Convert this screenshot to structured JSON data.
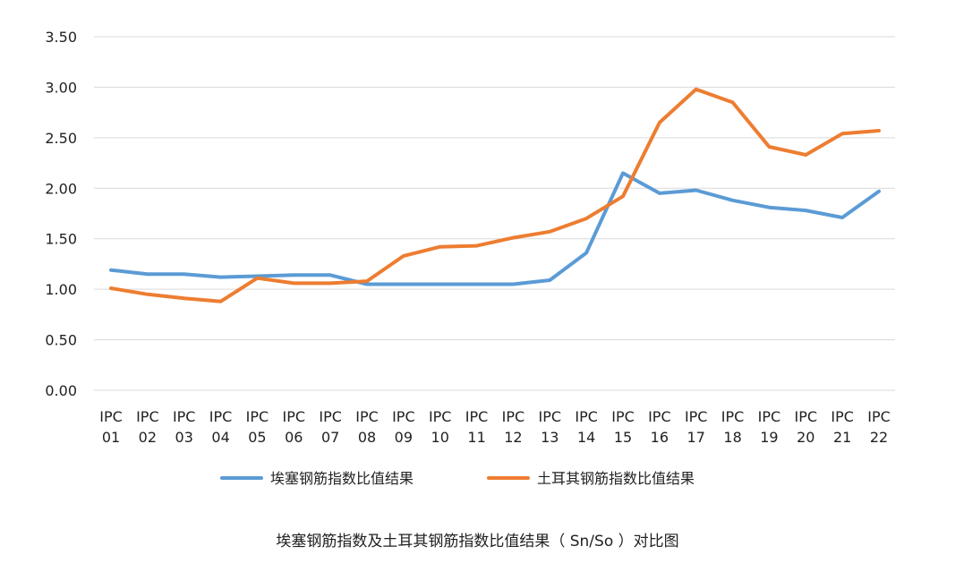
{
  "chart_data": {
    "type": "line",
    "categories": [
      [
        "IPC",
        "01"
      ],
      [
        "IPC",
        "02"
      ],
      [
        "IPC",
        "03"
      ],
      [
        "IPC",
        "04"
      ],
      [
        "IPC",
        "05"
      ],
      [
        "IPC",
        "06"
      ],
      [
        "IPC",
        "07"
      ],
      [
        "IPC",
        "08"
      ],
      [
        "IPC",
        "09"
      ],
      [
        "IPC",
        "10"
      ],
      [
        "IPC",
        "11"
      ],
      [
        "IPC",
        "12"
      ],
      [
        "IPC",
        "13"
      ],
      [
        "IPC",
        "14"
      ],
      [
        "IPC",
        "15"
      ],
      [
        "IPC",
        "16"
      ],
      [
        "IPC",
        "17"
      ],
      [
        "IPC",
        "18"
      ],
      [
        "IPC",
        "19"
      ],
      [
        "IPC",
        "20"
      ],
      [
        "IPC",
        "21"
      ],
      [
        "IPC",
        "22"
      ]
    ],
    "ylim": [
      0,
      3.5
    ],
    "yticks": [
      "0.00",
      "0.50",
      "1.00",
      "1.50",
      "2.00",
      "2.50",
      "3.00",
      "3.50"
    ],
    "grid": true,
    "legend_position": "bottom",
    "series": [
      {
        "name": "埃塞钢筋指数比值结果",
        "color": "#5B9BD5",
        "values": [
          1.19,
          1.15,
          1.15,
          1.12,
          1.13,
          1.14,
          1.14,
          1.05,
          1.05,
          1.05,
          1.05,
          1.05,
          1.09,
          1.36,
          2.15,
          1.95,
          1.98,
          1.88,
          1.81,
          1.78,
          1.71,
          1.97
        ]
      },
      {
        "name": "土耳其钢筋指数比值结果",
        "color": "#ED7D31",
        "values": [
          1.01,
          0.95,
          0.91,
          0.88,
          1.11,
          1.06,
          1.06,
          1.08,
          1.33,
          1.42,
          1.43,
          1.51,
          1.57,
          1.7,
          1.92,
          2.65,
          2.98,
          2.85,
          2.41,
          2.33,
          2.54,
          2.57
        ]
      }
    ]
  },
  "caption": "埃塞钢筋指数及土耳其钢筋指数比值结果（ Sn/So ）对比图"
}
